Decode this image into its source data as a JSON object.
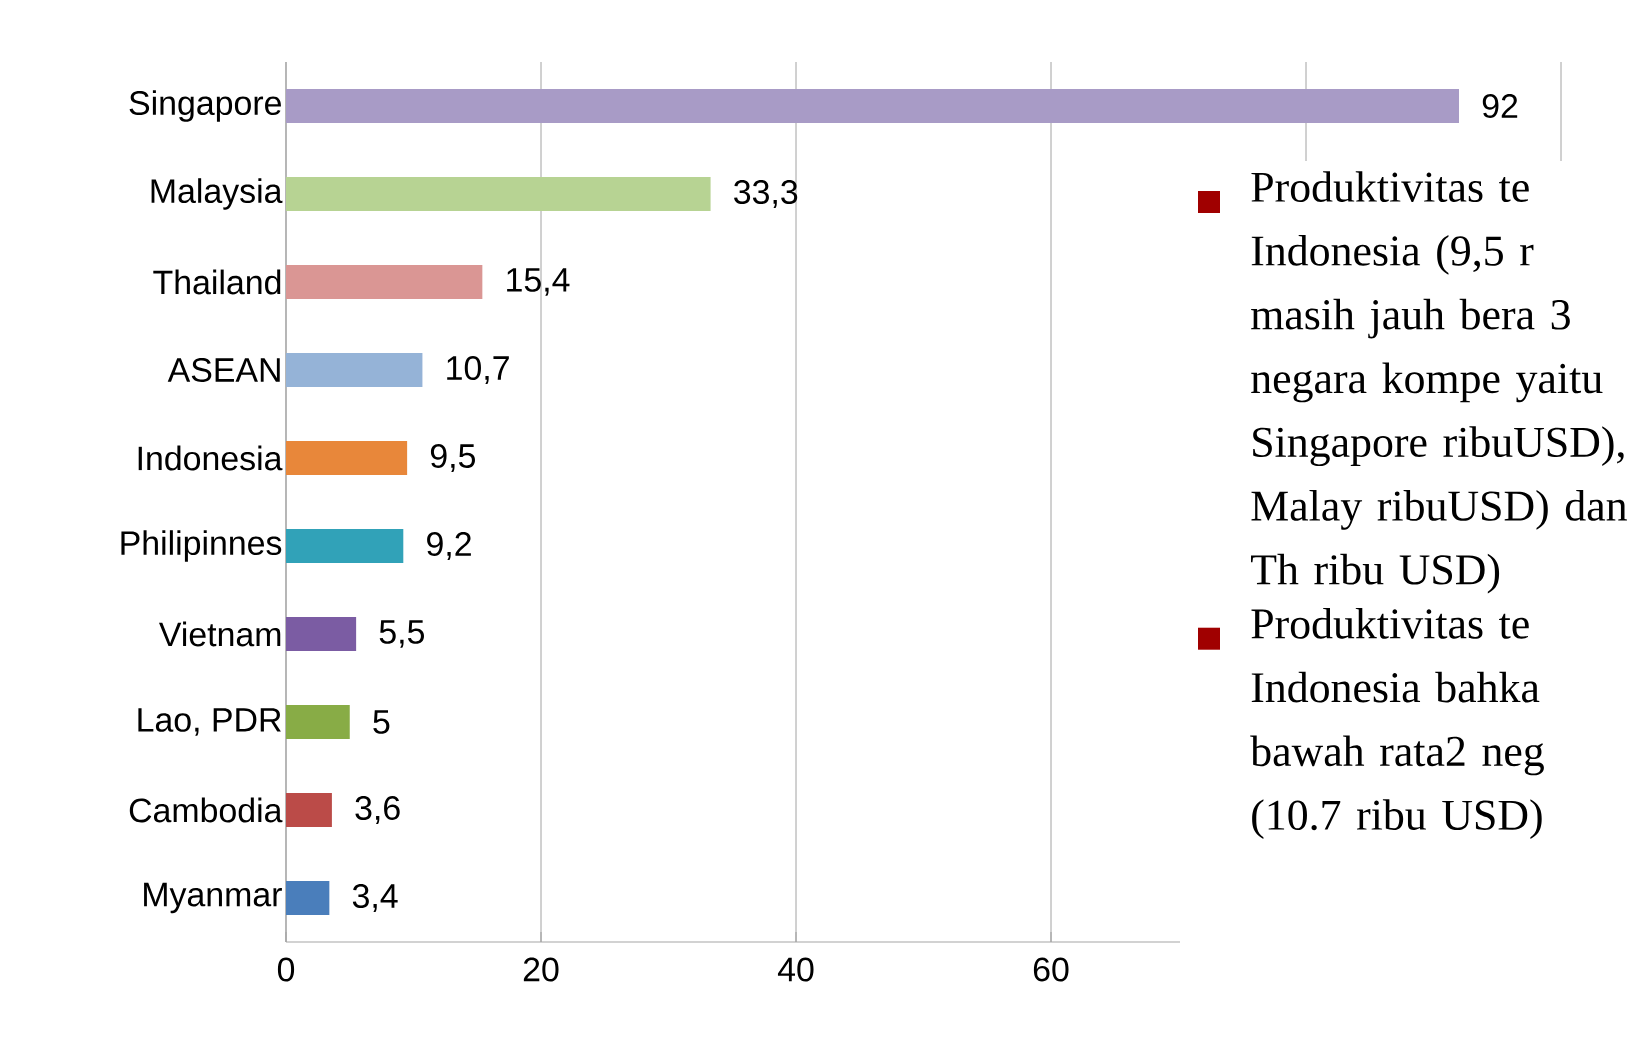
{
  "chart_data": {
    "type": "bar",
    "orientation": "horizontal",
    "categories": [
      "Singapore",
      "Malaysia",
      "Thailand",
      "ASEAN",
      "Indonesia",
      "Philipinnes",
      "Vietnam",
      "Lao, PDR",
      "Cambodia",
      "Myanmar"
    ],
    "values": [
      92,
      33.3,
      15.4,
      10.7,
      9.5,
      9.2,
      5.5,
      5,
      3.6,
      3.4
    ],
    "value_labels": [
      "92",
      "33,3",
      "15,4",
      "10,7",
      "9,5",
      "9,2",
      "5,5",
      "5",
      "3,6",
      "3,4"
    ],
    "colors": [
      "#a89bc6",
      "#b7d393",
      "#da9694",
      "#95b3d7",
      "#e8873a",
      "#31a2b8",
      "#7b5ca3",
      "#88ac46",
      "#bb4b48",
      "#4a7ebb"
    ],
    "xlim": [
      0,
      100
    ],
    "xticks": [
      0,
      20,
      40,
      60,
      {
        "value": 80,
        "label": null
      },
      {
        "value": 100,
        "label": null
      }
    ],
    "grid": "x",
    "annotations": [
      "Produktivitas te Indonesia (9,5 r masih jauh bera 3 negara kompe yaitu Singapore ribuUSD), Malay ribuUSD) dan Th ribu USD)",
      "Produktivitas te Indonesia bahka bawah rata2 neg (10.7 ribu USD)"
    ]
  }
}
